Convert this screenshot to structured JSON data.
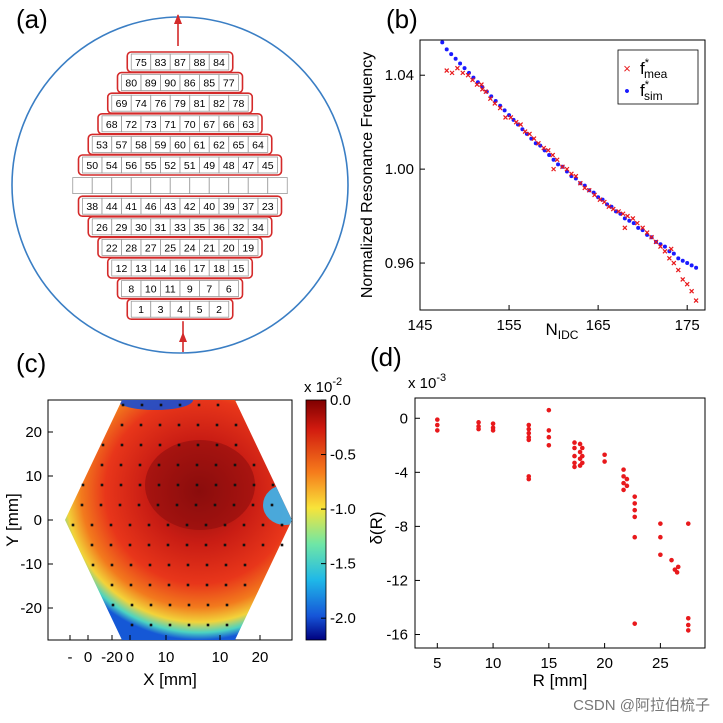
{
  "panels": {
    "a": {
      "label": "(a)"
    },
    "b": {
      "label": "(b)"
    },
    "c": {
      "label": "(c)"
    },
    "d": {
      "label": "(d)"
    }
  },
  "watermark": "CSDN @阿拉伯梳子",
  "chart_data": [
    {
      "id": "a",
      "type": "diagram",
      "rows": [
        [
          "75",
          "83",
          "87",
          "88",
          "84"
        ],
        [
          "80",
          "89",
          "90",
          "86",
          "85",
          "77"
        ],
        [
          "69",
          "74",
          "76",
          "79",
          "81",
          "82",
          "78"
        ],
        [
          "68",
          "72",
          "73",
          "71",
          "70",
          "67",
          "66",
          "63"
        ],
        [
          "53",
          "57",
          "58",
          "59",
          "60",
          "61",
          "62",
          "65",
          "64"
        ],
        [
          "50",
          "54",
          "56",
          "55",
          "52",
          "51",
          "49",
          "48",
          "47",
          "45"
        ],
        [
          "",
          "",
          "",
          "",
          "",
          "",
          "",
          "",
          "",
          "",
          ""
        ],
        [
          "38",
          "44",
          "41",
          "46",
          "43",
          "42",
          "40",
          "39",
          "37",
          "23"
        ],
        [
          "26",
          "29",
          "30",
          "31",
          "33",
          "35",
          "36",
          "32",
          "34"
        ],
        [
          "22",
          "28",
          "27",
          "25",
          "24",
          "21",
          "20",
          "19"
        ],
        [
          "12",
          "13",
          "14",
          "16",
          "17",
          "18",
          "15"
        ],
        [
          "8",
          "10",
          "11",
          "9",
          "7",
          "6"
        ],
        [
          "1",
          "3",
          "4",
          "5",
          "2"
        ]
      ]
    },
    {
      "id": "b",
      "type": "scatter",
      "ylabel": "Normalized Resonance Frequency",
      "xlabel": "N",
      "xlabel_sub": "IDC",
      "xlim": [
        145,
        177
      ],
      "ylim": [
        0.94,
        1.055
      ],
      "xticks": [
        145,
        155,
        165,
        175
      ],
      "xtick_labels": [
        "145",
        "155",
        "165",
        "175"
      ],
      "yticks": [
        0.96,
        1.0,
        1.04
      ],
      "ytick_labels": [
        "0.96",
        "1.00",
        "1.04"
      ],
      "legend": {
        "placement": "top-right",
        "entries": [
          {
            "symbol": "×",
            "main": "f",
            "sup": "*",
            "sub": "mea",
            "color": "#e8191c"
          },
          {
            "symbol": "•",
            "main": "f",
            "sup": "*",
            "sub": "sim",
            "color": "#1a1aff"
          }
        ]
      },
      "series": [
        {
          "marker": "x",
          "color": "#e8191c",
          "values": [
            [
              148,
              1.042
            ],
            [
              148.6,
              1.041
            ],
            [
              149.2,
              1.043
            ],
            [
              149.8,
              1.041
            ],
            [
              150.4,
              1.04
            ],
            [
              150.9,
              1.038
            ],
            [
              151.4,
              1.036
            ],
            [
              151.9,
              1.036
            ],
            [
              152.4,
              1.033
            ],
            [
              152.9,
              1.03
            ],
            [
              153.4,
              1.028
            ],
            [
              154.0,
              1.026
            ],
            [
              154.6,
              1.022
            ],
            [
              155.2,
              1.022
            ],
            [
              155.8,
              1.02
            ],
            [
              156.3,
              1.019
            ],
            [
              156.8,
              1.016
            ],
            [
              157.3,
              1.015
            ],
            [
              157.8,
              1.013
            ],
            [
              158.3,
              1.011
            ],
            [
              158.9,
              1.009
            ],
            [
              159.4,
              1.008
            ],
            [
              159.9,
              1.006
            ],
            [
              160.4,
              1.004
            ],
            [
              161.0,
              1.001
            ],
            [
              161.5,
              1.0
            ],
            [
              162.0,
              0.998
            ],
            [
              162.5,
              0.997
            ],
            [
              163.0,
              0.994
            ],
            [
              163.5,
              0.992
            ],
            [
              164.0,
              0.991
            ],
            [
              164.6,
              0.989
            ],
            [
              165.2,
              0.987
            ],
            [
              165.7,
              0.986
            ],
            [
              166.2,
              0.984
            ],
            [
              166.7,
              0.983
            ],
            [
              167.3,
              0.982
            ],
            [
              167.8,
              0.981
            ],
            [
              168.3,
              0.98
            ],
            [
              168.9,
              0.979
            ],
            [
              169.4,
              0.977
            ],
            [
              170.0,
              0.975
            ],
            [
              170.5,
              0.973
            ],
            [
              171.0,
              0.971
            ],
            [
              171.5,
              0.969
            ],
            [
              172.0,
              0.967
            ],
            [
              172.5,
              0.965
            ],
            [
              173.0,
              0.962
            ],
            [
              173.5,
              0.96
            ],
            [
              174.0,
              0.957
            ],
            [
              174.5,
              0.953
            ],
            [
              175.0,
              0.951
            ],
            [
              175.5,
              0.948
            ],
            [
              176.0,
              0.944
            ],
            [
              152.0,
              1.034
            ],
            [
              160.0,
              1.0
            ],
            [
              168.0,
              0.975
            ],
            [
              173.2,
              0.966
            ]
          ]
        },
        {
          "marker": "dot",
          "color": "#1a1aff",
          "values": [
            [
              147.5,
              1.054
            ],
            [
              148.0,
              1.051
            ],
            [
              148.5,
              1.049
            ],
            [
              149.0,
              1.047
            ],
            [
              149.5,
              1.045
            ],
            [
              150.0,
              1.043
            ],
            [
              150.5,
              1.041
            ],
            [
              151.0,
              1.039
            ],
            [
              151.5,
              1.037
            ],
            [
              152.0,
              1.035
            ],
            [
              152.5,
              1.033
            ],
            [
              153.0,
              1.031
            ],
            [
              153.5,
              1.029
            ],
            [
              154.0,
              1.027
            ],
            [
              154.5,
              1.025
            ],
            [
              155.0,
              1.023
            ],
            [
              155.5,
              1.021
            ],
            [
              156.0,
              1.019
            ],
            [
              156.5,
              1.017
            ],
            [
              157.0,
              1.015
            ],
            [
              157.5,
              1.013
            ],
            [
              158.0,
              1.011
            ],
            [
              158.5,
              1.01
            ],
            [
              159.0,
              1.008
            ],
            [
              159.5,
              1.006
            ],
            [
              160.0,
              1.004
            ],
            [
              160.5,
              1.002
            ],
            [
              161.0,
              1.001
            ],
            [
              161.5,
              0.999
            ],
            [
              162.0,
              0.997
            ],
            [
              162.5,
              0.996
            ],
            [
              163.0,
              0.994
            ],
            [
              163.5,
              0.993
            ],
            [
              164.0,
              0.991
            ],
            [
              164.5,
              0.99
            ],
            [
              165.0,
              0.988
            ],
            [
              165.5,
              0.987
            ],
            [
              166.0,
              0.985
            ],
            [
              166.5,
              0.984
            ],
            [
              167.0,
              0.982
            ],
            [
              167.5,
              0.981
            ],
            [
              168.0,
              0.979
            ],
            [
              168.5,
              0.978
            ],
            [
              169.0,
              0.977
            ],
            [
              169.5,
              0.975
            ],
            [
              170.0,
              0.974
            ],
            [
              170.5,
              0.972
            ],
            [
              171.0,
              0.971
            ],
            [
              171.5,
              0.969
            ],
            [
              172.0,
              0.968
            ],
            [
              172.5,
              0.967
            ],
            [
              173.0,
              0.965
            ],
            [
              173.5,
              0.964
            ],
            [
              174.0,
              0.962
            ],
            [
              174.5,
              0.961
            ],
            [
              175.0,
              0.96
            ],
            [
              175.5,
              0.959
            ],
            [
              176.0,
              0.958
            ]
          ]
        }
      ]
    },
    {
      "id": "c",
      "type": "heatmap",
      "xlabel": "X [mm]",
      "ylabel": "Y [mm]",
      "colorbar_exponent": "x 10",
      "colorbar_exponent_sup": "-2",
      "xtick_labels": [
        "-",
        "0",
        "-20",
        "0",
        "10",
        "10",
        "20"
      ],
      "yticks": [
        20,
        10,
        0,
        -10,
        -20
      ],
      "ytick_labels": [
        "20",
        "10",
        "0",
        "-10",
        "-20"
      ],
      "colorbar_ticks": [
        0.0,
        -0.5,
        -1.0,
        -1.5,
        -2.0
      ],
      "colorbar_tick_labels": [
        "0.0",
        "-0.5",
        "-1.0",
        "-1.5",
        "-2.0"
      ],
      "colorbar_range": [
        -2.2,
        0.0
      ]
    },
    {
      "id": "d",
      "type": "scatter",
      "ylabel": "δ(R)",
      "xlabel": "R [mm]",
      "y_exponent": "x 10",
      "y_exponent_sup": "-3",
      "xlim": [
        3,
        29
      ],
      "ylim": [
        -17,
        1.5
      ],
      "xticks": [
        5,
        10,
        15,
        20,
        25
      ],
      "xtick_labels": [
        "5",
        "10",
        "15",
        "20",
        "25"
      ],
      "yticks": [
        0,
        -4,
        -8,
        -12,
        -16
      ],
      "ytick_labels": [
        "0",
        "-4",
        "-8",
        "-12",
        "-16"
      ],
      "series": [
        {
          "marker": "dot",
          "color": "#e8191c",
          "values": [
            [
              5,
              -0.1
            ],
            [
              5,
              -0.5
            ],
            [
              5,
              -0.9
            ],
            [
              8.7,
              -0.3
            ],
            [
              8.7,
              -0.6
            ],
            [
              8.7,
              -0.8
            ],
            [
              10,
              -0.4
            ],
            [
              10,
              -0.7
            ],
            [
              10,
              -0.9
            ],
            [
              13.2,
              -0.5
            ],
            [
              13.2,
              -0.8
            ],
            [
              13.2,
              -1.1
            ],
            [
              13.2,
              -1.4
            ],
            [
              13.2,
              -1.6
            ],
            [
              13.2,
              -4.3
            ],
            [
              13.2,
              -4.5
            ],
            [
              15,
              0.6
            ],
            [
              15,
              -0.9
            ],
            [
              15,
              -1.4
            ],
            [
              15,
              -2.0
            ],
            [
              17.3,
              -1.8
            ],
            [
              17.3,
              -2.2
            ],
            [
              17.3,
              -2.8
            ],
            [
              17.3,
              -3.3
            ],
            [
              17.3,
              -3.6
            ],
            [
              17.8,
              -1.9
            ],
            [
              17.8,
              -2.5
            ],
            [
              17.8,
              -3.0
            ],
            [
              17.8,
              -3.5
            ],
            [
              18.0,
              -2.2
            ],
            [
              18.0,
              -2.8
            ],
            [
              18.0,
              -3.3
            ],
            [
              20,
              -2.7
            ],
            [
              20,
              -3.2
            ],
            [
              21.7,
              -3.8
            ],
            [
              21.7,
              -4.3
            ],
            [
              21.7,
              -4.8
            ],
            [
              21.7,
              -5.3
            ],
            [
              22,
              -4.5
            ],
            [
              22,
              -5.0
            ],
            [
              22.7,
              -5.8
            ],
            [
              22.7,
              -6.3
            ],
            [
              22.7,
              -6.8
            ],
            [
              22.7,
              -7.3
            ],
            [
              22.7,
              -8.8
            ],
            [
              22.7,
              -15.2
            ],
            [
              25,
              -7.8
            ],
            [
              25,
              -8.8
            ],
            [
              25,
              -10.1
            ],
            [
              26,
              -10.5
            ],
            [
              26.3,
              -11.2
            ],
            [
              26.5,
              -11.4
            ],
            [
              26.6,
              -11.0
            ],
            [
              27.5,
              -7.8
            ],
            [
              27.5,
              -14.8
            ],
            [
              27.5,
              -15.3
            ],
            [
              27.5,
              -15.7
            ]
          ]
        }
      ]
    }
  ]
}
